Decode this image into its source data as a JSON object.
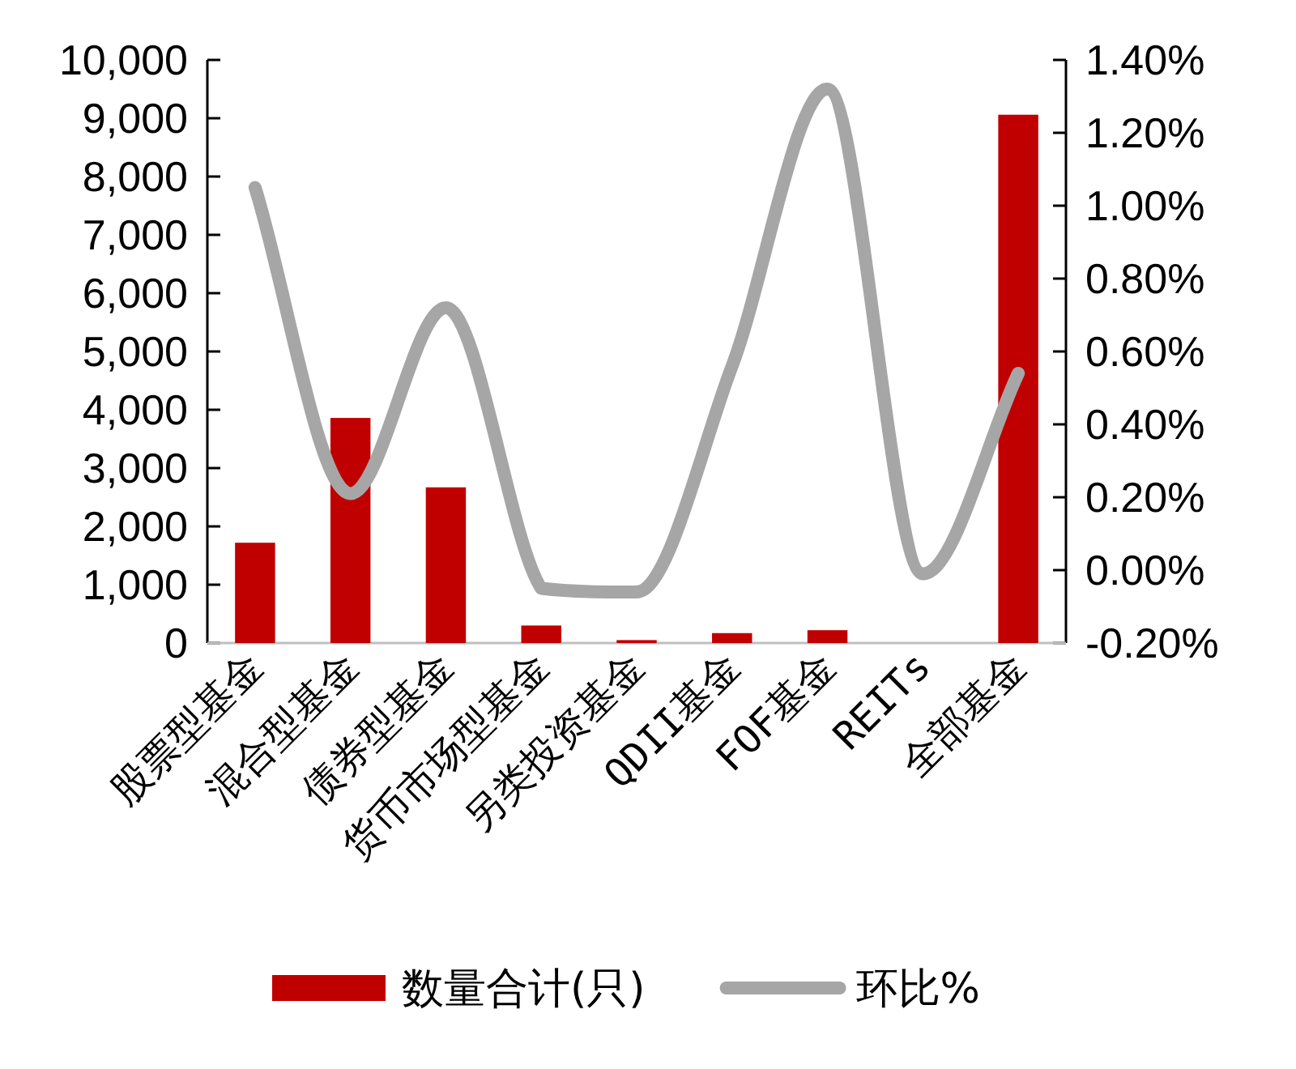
{
  "chart_data": {
    "type": "bar",
    "categories": [
      "股票型基金",
      "混合型基金",
      "债券型基金",
      "货币市场型基金",
      "另类投资基金",
      "QDII基金",
      "FOF基金",
      "REITs",
      "全部基金"
    ],
    "series": [
      {
        "name": "数量合计(只)",
        "color": "#c00000",
        "values": [
          1720,
          3860,
          2670,
          300,
          50,
          170,
          220,
          0,
          9060
        ]
      },
      {
        "name": "环比%",
        "type": "line",
        "axis": "y2",
        "color": "#a6a6a6",
        "values": [
          1.05,
          0.21,
          0.72,
          -0.05,
          -0.06,
          0.56,
          1.32,
          -0.01,
          0.54
        ]
      }
    ],
    "ylim": [
      0,
      10000
    ],
    "yticks": [
      {
        "value": 0,
        "label": "0"
      },
      {
        "value": 1000,
        "label": "1,000"
      },
      {
        "value": 2000,
        "label": "2,000"
      },
      {
        "value": 3000,
        "label": "3,000"
      },
      {
        "value": 4000,
        "label": "4,000"
      },
      {
        "value": 5000,
        "label": "5,000"
      },
      {
        "value": 6000,
        "label": "6,000"
      },
      {
        "value": 7000,
        "label": "7,000"
      },
      {
        "value": 8000,
        "label": "8,000"
      },
      {
        "value": 9000,
        "label": "9,000"
      },
      {
        "value": 10000,
        "label": "10,000"
      }
    ],
    "y2lim": [
      -0.2,
      1.4
    ],
    "y2ticks": [
      {
        "value": -0.2,
        "label": "-0.20%"
      },
      {
        "value": 0,
        "label": "0.00%"
      },
      {
        "value": 0.2,
        "label": "0.20%"
      },
      {
        "value": 0.4,
        "label": "0.40%"
      },
      {
        "value": 0.6,
        "label": "0.60%"
      },
      {
        "value": 0.8,
        "label": "0.80%"
      },
      {
        "value": 1.0,
        "label": "1.00%"
      },
      {
        "value": 1.2,
        "label": "1.20%"
      },
      {
        "value": 1.4,
        "label": "1.40%"
      }
    ],
    "legend": "bottom"
  }
}
